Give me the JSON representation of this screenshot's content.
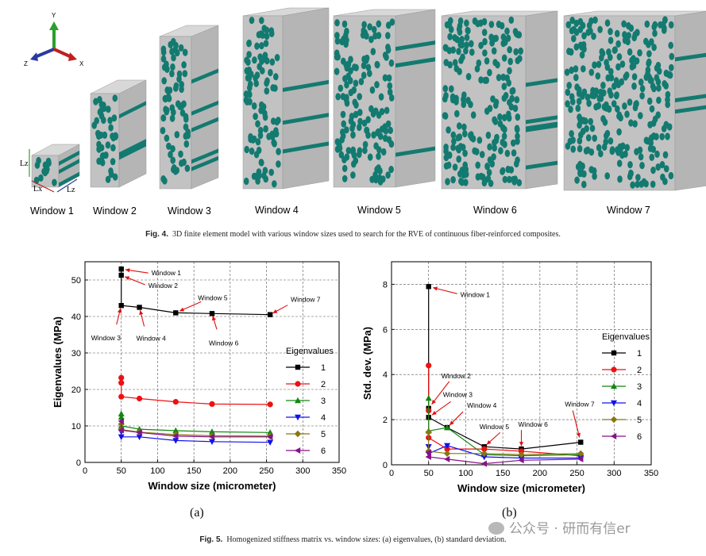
{
  "fig4": {
    "axes_triad": {
      "y": "Y",
      "z": "Z",
      "x": "X"
    },
    "dim_labels": {
      "lz_side": "Lz",
      "lx": "Lx",
      "lz_bottom": "Lz"
    },
    "windows": [
      "Window 1",
      "Window 2",
      "Window 3",
      "Window 4",
      "Window 5",
      "Window 6",
      "Window 7"
    ],
    "colors": {
      "matrix": "#c2c2c2",
      "fiber": "#137a70"
    }
  },
  "captions": {
    "fig4_label": "Fig. 4.",
    "fig4_text": "3D finite element model with various window sizes used to search for the RVE of continuous fiber-reinforced composites.",
    "fig5_label": "Fig. 5.",
    "fig5_text": "Homogenized stiffness matrix vs. window sizes: (a) eigenvalues, (b) standard deviation."
  },
  "subfigure_labels": [
    "(a)",
    "(b)"
  ],
  "watermark": "公众号 · 研而有信er",
  "chart_data": [
    {
      "type": "line",
      "xlabel": "Window size (micrometer)",
      "ylabel": "Eigenvalues (MPa)",
      "xlim": [
        0,
        350
      ],
      "ylim": [
        0,
        55
      ],
      "xticks": [
        0,
        50,
        100,
        150,
        200,
        250,
        300,
        350
      ],
      "yticks": [
        0,
        10,
        20,
        30,
        40,
        50
      ],
      "grid": true,
      "legend_title": "Eigenvalues",
      "legend_position": "right",
      "series": [
        {
          "name": "1",
          "color": "#000000",
          "marker": "square",
          "points": [
            [
              50,
              53
            ],
            [
              50,
              51.3
            ],
            [
              50,
              43
            ],
            [
              75,
              42.5
            ],
            [
              125,
              41
            ],
            [
              175,
              40.8
            ],
            [
              255,
              40.5
            ]
          ]
        },
        {
          "name": "2",
          "color": "#ee1111",
          "marker": "circle",
          "points": [
            [
              50,
              23.2
            ],
            [
              50,
              21.8
            ],
            [
              50,
              18
            ],
            [
              75,
              17.5
            ],
            [
              125,
              16.6
            ],
            [
              175,
              16
            ],
            [
              255,
              15.9
            ]
          ]
        },
        {
          "name": "3",
          "color": "#118811",
          "marker": "triangle",
          "points": [
            [
              50,
              13.3
            ],
            [
              50,
              12.4
            ],
            [
              50,
              10
            ],
            [
              75,
              9.1
            ],
            [
              125,
              8.7
            ],
            [
              175,
              8.4
            ],
            [
              255,
              8.2
            ]
          ]
        },
        {
          "name": "4",
          "color": "#1111ee",
          "marker": "triangle-down",
          "points": [
            [
              50,
              8.4
            ],
            [
              50,
              7
            ],
            [
              75,
              7
            ],
            [
              125,
              6
            ],
            [
              175,
              5.7
            ],
            [
              255,
              5.5
            ]
          ]
        },
        {
          "name": "5",
          "color": "#887711",
          "marker": "diamond",
          "points": [
            [
              50,
              10.5
            ],
            [
              50,
              9
            ],
            [
              75,
              8.3
            ],
            [
              125,
              7.6
            ],
            [
              175,
              7.3
            ],
            [
              255,
              7.2
            ]
          ]
        },
        {
          "name": "6",
          "color": "#881188",
          "marker": "triangle-left",
          "points": [
            [
              50,
              11.3
            ],
            [
              50,
              8.8
            ],
            [
              75,
              8.2
            ],
            [
              125,
              7.2
            ],
            [
              175,
              7
            ],
            [
              255,
              7
            ]
          ]
        }
      ],
      "annotations": [
        {
          "text": "Window 1",
          "x": 50,
          "y": 53
        },
        {
          "text": "Window 2",
          "x": 50,
          "y": 51.3
        },
        {
          "text": "Window 3",
          "x": 50,
          "y": 43
        },
        {
          "text": "Window 4",
          "x": 75,
          "y": 42.5
        },
        {
          "text": "Window 5",
          "x": 125,
          "y": 41
        },
        {
          "text": "Window 6",
          "x": 175,
          "y": 40.8
        },
        {
          "text": "Window 7",
          "x": 255,
          "y": 40.5
        }
      ]
    },
    {
      "type": "line",
      "xlabel": "Window size (micrometer)",
      "ylabel": "Std. dev. (MPa)",
      "xlim": [
        0,
        350
      ],
      "ylim": [
        0,
        9
      ],
      "xticks": [
        0,
        50,
        100,
        150,
        200,
        250,
        300,
        350
      ],
      "yticks": [
        0,
        2,
        4,
        6,
        8
      ],
      "grid": true,
      "legend_title": "Eigenvalues",
      "legend_position": "right",
      "series": [
        {
          "name": "1",
          "color": "#000000",
          "marker": "square",
          "points": [
            [
              50,
              7.9
            ],
            [
              50,
              2.5
            ],
            [
              50,
              2.1
            ],
            [
              75,
              1.65
            ],
            [
              125,
              0.8
            ],
            [
              175,
              0.7
            ],
            [
              255,
              1.0
            ]
          ]
        },
        {
          "name": "2",
          "color": "#ee1111",
          "marker": "circle",
          "points": [
            [
              50,
              4.4
            ],
            [
              50,
              2.4
            ],
            [
              50,
              1.2
            ],
            [
              75,
              0.7
            ],
            [
              125,
              0.7
            ],
            [
              175,
              0.6
            ],
            [
              255,
              0.4
            ]
          ]
        },
        {
          "name": "3",
          "color": "#118811",
          "marker": "triangle",
          "points": [
            [
              50,
              2.95
            ],
            [
              50,
              1.5
            ],
            [
              75,
              1.65
            ],
            [
              125,
              0.45
            ],
            [
              175,
              0.4
            ],
            [
              255,
              0.45
            ]
          ]
        },
        {
          "name": "4",
          "color": "#1111ee",
          "marker": "triangle-down",
          "points": [
            [
              50,
              0.8
            ],
            [
              50,
              0.5
            ],
            [
              75,
              0.85
            ],
            [
              125,
              0.35
            ],
            [
              175,
              0.3
            ],
            [
              255,
              0.3
            ]
          ]
        },
        {
          "name": "5",
          "color": "#887711",
          "marker": "diamond",
          "points": [
            [
              50,
              1.45
            ],
            [
              50,
              0.6
            ],
            [
              75,
              0.5
            ],
            [
              125,
              0.5
            ],
            [
              175,
              0.45
            ],
            [
              255,
              0.5
            ]
          ]
        },
        {
          "name": "6",
          "color": "#881188",
          "marker": "triangle-left",
          "points": [
            [
              50,
              0.55
            ],
            [
              50,
              0.35
            ],
            [
              75,
              0.25
            ],
            [
              125,
              0.05
            ],
            [
              175,
              0.2
            ],
            [
              255,
              0.25
            ]
          ]
        }
      ],
      "annotations": [
        {
          "text": "Window 1",
          "x": 50,
          "y": 7.9
        },
        {
          "text": "Window 2",
          "x": 50,
          "y": 2.5
        },
        {
          "text": "Window 3",
          "x": 50,
          "y": 2.1
        },
        {
          "text": "Window 4",
          "x": 75,
          "y": 1.65
        },
        {
          "text": "Window 5",
          "x": 125,
          "y": 0.8
        },
        {
          "text": "Window 6",
          "x": 175,
          "y": 0.7
        },
        {
          "text": "Window 7",
          "x": 255,
          "y": 1.0
        }
      ]
    }
  ]
}
